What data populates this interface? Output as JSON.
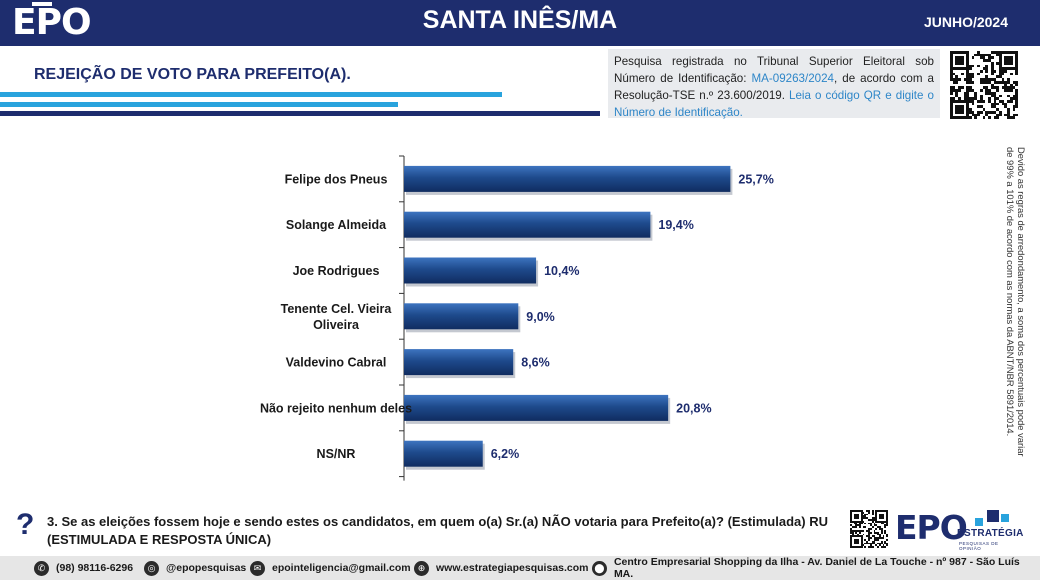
{
  "header": {
    "logo": "EPO",
    "title": "SANTA INÊS/MA",
    "date": "JUNHO/2024"
  },
  "section_title": "REJEIÇÃO DE VOTO PARA PREFEITO(A).",
  "registration": {
    "text_1": "Pesquisa registrada no Tribunal Superior Eleitoral sob Número de Identificação: ",
    "id": "MA-09263/2024",
    "text_2": ", de acordo com a Resolução-TSE n.º 23.600/2019. ",
    "link_text": "Leia o código QR e digite o Número de Identificação."
  },
  "side_note": "Devido as regras de arredondamento, a soma dos percentuais pode variar de 99% a 101% de acordo com as normas da ABNT/NBR 5891/2014.",
  "chart_data": {
    "type": "bar",
    "orientation": "horizontal",
    "categories": [
      "Felipe dos Pneus",
      "Solange Almeida",
      "Joe Rodrigues",
      "Tenente Cel. Vieira Oliveira",
      "Valdevino Cabral",
      "Não rejeito nenhum deles",
      "NS/NR"
    ],
    "values": [
      25.7,
      19.4,
      10.4,
      9.0,
      8.6,
      20.8,
      6.2
    ],
    "value_labels": [
      "25,7%",
      "19,4%",
      "10,4%",
      "9,0%",
      "8,6%",
      "20,8%",
      "6,2%"
    ],
    "title": "",
    "xlabel": "",
    "ylabel": "",
    "xlim": [
      0,
      30
    ],
    "grid": false,
    "legend": "none",
    "bar_color": "#1e4a8c"
  },
  "question": {
    "icon": "question-mark-icon",
    "text": "3. Se as eleições fossem hoje e sendo estes os candidatos, em quem o(a) Sr.(a) NÃO votaria para Prefeito(a)? (Estimulada) RU (ESTIMULADA E RESPOSTA ÚNICA)"
  },
  "brand": {
    "name": "EPO",
    "word": "ESTRATÉGIA",
    "tagline": "PESQUISAS DE OPINIÃO"
  },
  "footer": {
    "phone": "(98) 98116-6296",
    "instagram": "@epopesquisas",
    "email": "epointeligencia@gmail.com",
    "website": "www.estrategiapesquisas.com",
    "address": "Centro Empresarial Shopping da Ilha - Av. Daniel de La Touche - nº 987 - São Luís MA."
  },
  "colors": {
    "navy": "#1e2d6e",
    "light_blue": "#29a3dd",
    "bar": "#1e4a8c"
  }
}
